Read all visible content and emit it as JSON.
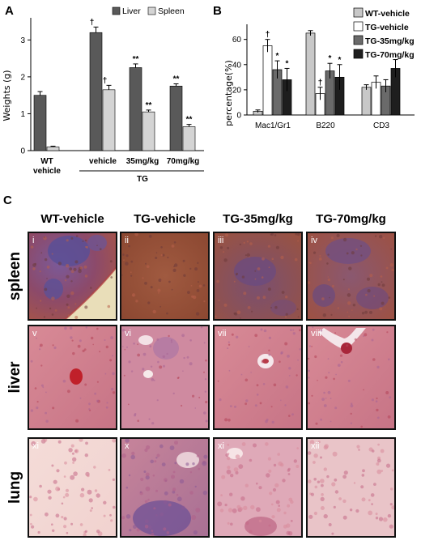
{
  "panels": {
    "a": "A",
    "b": "B",
    "c": "C"
  },
  "chart_a": {
    "type": "bar",
    "ylabel": "Weights (g)",
    "yticks": [
      "0",
      "1",
      "2",
      "3"
    ],
    "ylim": [
      0,
      3.6
    ],
    "legend": [
      "Liver",
      "Spleen"
    ],
    "colors": {
      "liver": "#595959",
      "spleen": "#d4d4d4"
    },
    "groups": [
      {
        "label": "WT",
        "label2": "vehicle",
        "values": [
          1.5,
          0.1
        ],
        "errors": [
          0.1,
          0.02
        ],
        "marks": [
          "",
          ""
        ]
      },
      {
        "label": "vehicle",
        "label2": "",
        "values": [
          3.2,
          1.65
        ],
        "errors": [
          0.15,
          0.12
        ],
        "marks": [
          "†",
          "†"
        ]
      },
      {
        "label": "35mg/kg",
        "label2": "",
        "values": [
          2.25,
          1.05
        ],
        "errors": [
          0.1,
          0.05
        ],
        "marks": [
          "**",
          "**"
        ]
      },
      {
        "label": "70mg/kg",
        "label2": "",
        "values": [
          1.75,
          0.65
        ],
        "errors": [
          0.06,
          0.06
        ],
        "marks": [
          "**",
          "**"
        ]
      }
    ],
    "group_label": "TG"
  },
  "chart_b": {
    "type": "bar",
    "ylabel": "percentage(%)",
    "yticks": [
      "0",
      "20",
      "40",
      "60"
    ],
    "ylim": [
      0,
      72
    ],
    "categories": [
      "Mac1/Gr1",
      "B220",
      "CD3"
    ],
    "series": [
      {
        "name": "WT-vehicle",
        "values": [
          3,
          65,
          22
        ],
        "errors": [
          1,
          2,
          2
        ],
        "marks": [
          "",
          "",
          ""
        ]
      },
      {
        "name": "TG-vehicle",
        "values": [
          55,
          17,
          26
        ],
        "errors": [
          5,
          5,
          5
        ],
        "marks": [
          "†",
          "†",
          ""
        ]
      },
      {
        "name": "TG-35mg/kg",
        "values": [
          36,
          35,
          23
        ],
        "errors": [
          7,
          6,
          5
        ],
        "marks": [
          "*",
          "*",
          ""
        ]
      },
      {
        "name": "TG-70mg/kg",
        "values": [
          28,
          30,
          37
        ],
        "errors": [
          9,
          10,
          7
        ],
        "marks": [
          "*",
          "*",
          ""
        ]
      }
    ],
    "colors": [
      "#c8c8c8",
      "#ffffff",
      "#6a6a6a",
      "#1e1e1e"
    ]
  },
  "histology": {
    "columns": [
      "WT-vehicle",
      "TG-vehicle",
      "TG-35mg/kg",
      "TG-70mg/kg"
    ],
    "rows": [
      {
        "label": "spleen",
        "tiles": [
          "i",
          "ii",
          "iii",
          "iv"
        ]
      },
      {
        "label": "liver",
        "tiles": [
          "v",
          "vi",
          "vii",
          "viii"
        ]
      },
      {
        "label": "lung",
        "tiles": [
          "xi",
          "x",
          "xi",
          "xii"
        ]
      }
    ]
  }
}
